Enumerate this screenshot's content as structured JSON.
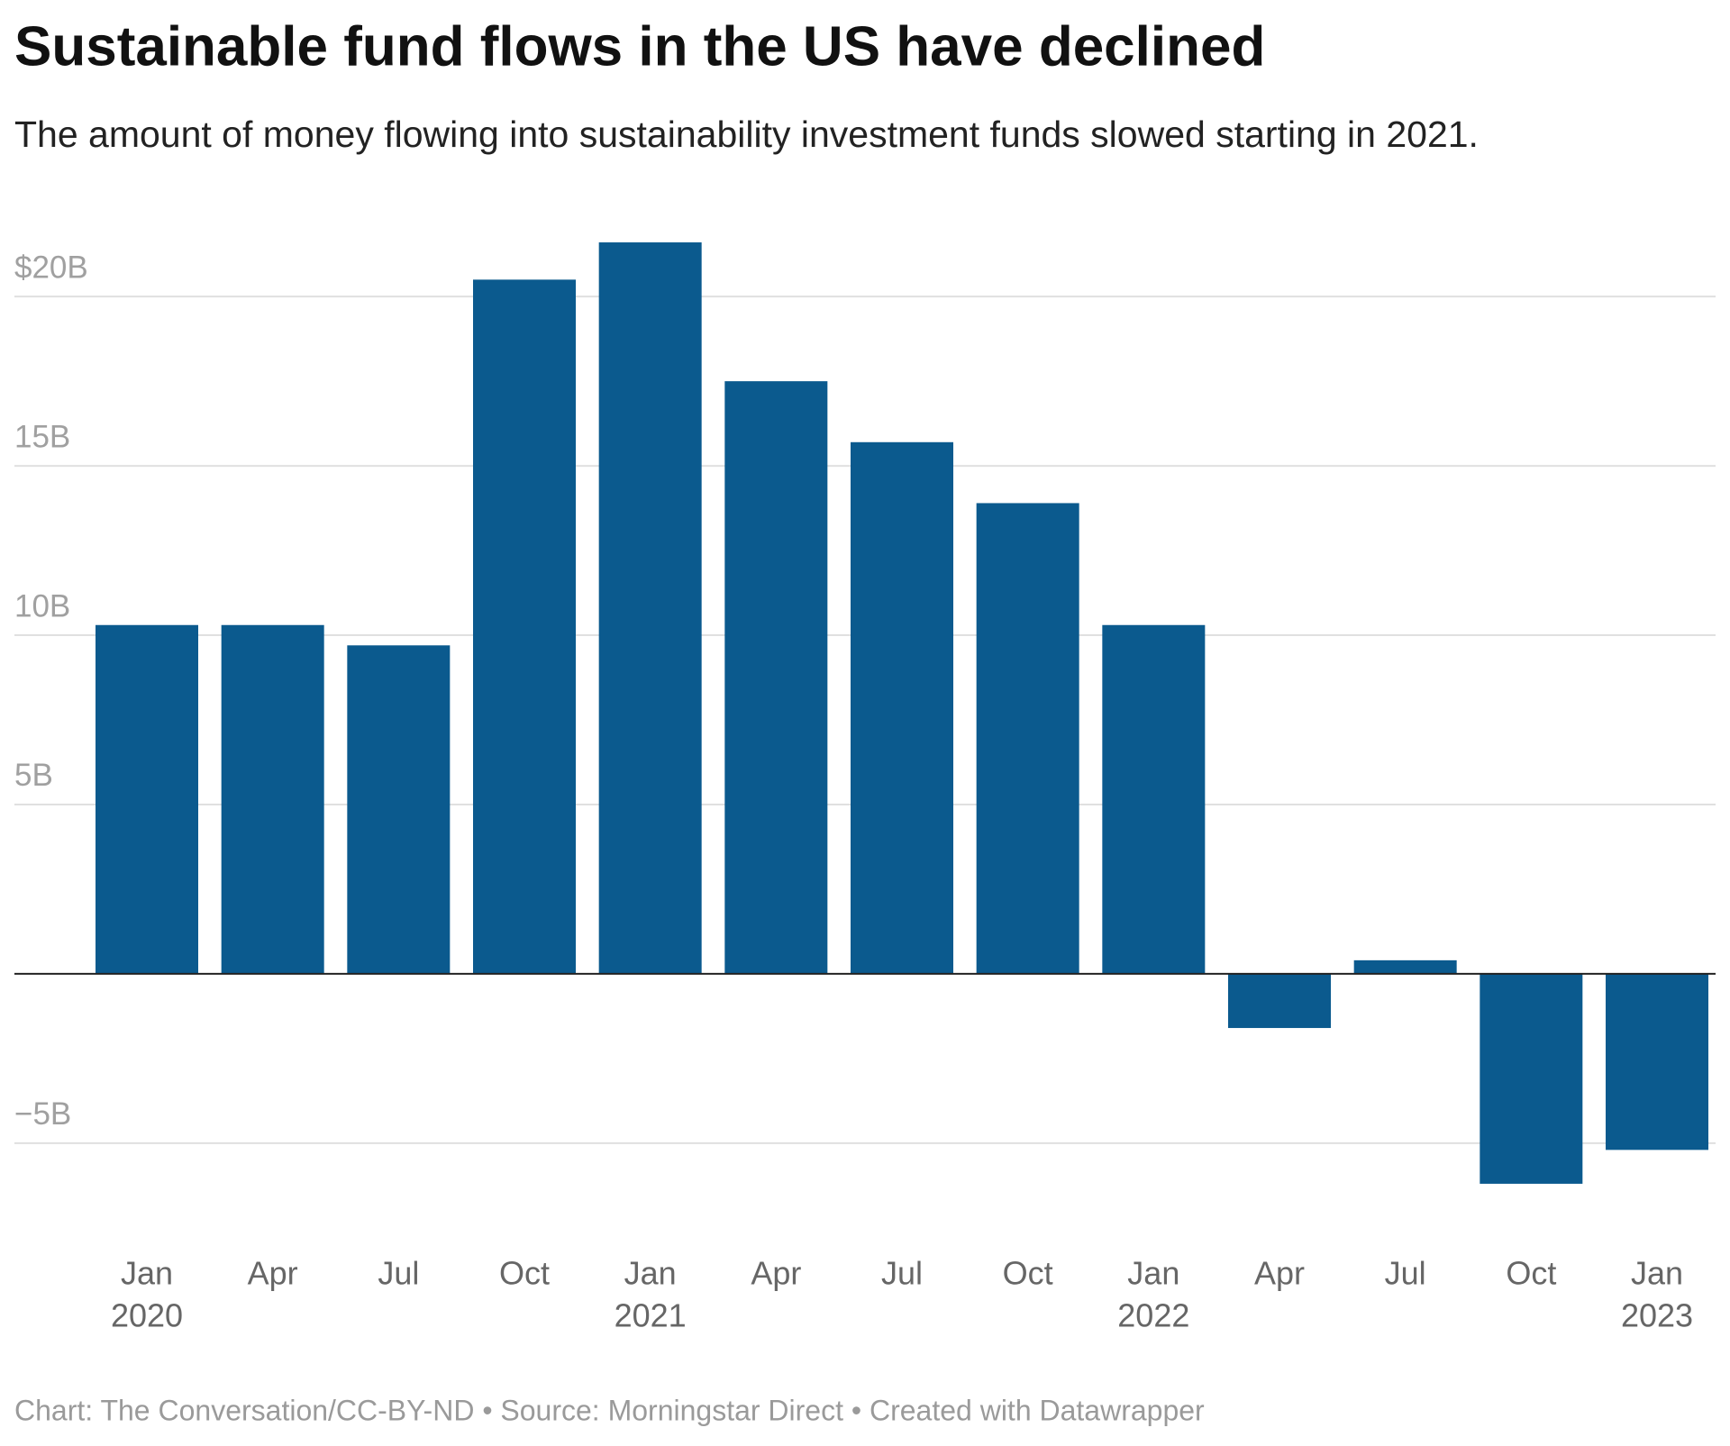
{
  "chart_data": {
    "type": "bar",
    "title": "Sustainable fund flows in the US have declined",
    "subtitle": "The amount of money flowing into sustainability investment funds slowed starting in 2021.",
    "categories": [
      "Jan",
      "Apr",
      "Jul",
      "Oct",
      "Jan",
      "Apr",
      "Jul",
      "Oct",
      "Jan",
      "Apr",
      "Jul",
      "Oct",
      "Jan"
    ],
    "years": [
      "2020",
      null,
      null,
      null,
      "2021",
      null,
      null,
      null,
      "2022",
      null,
      null,
      null,
      "2023"
    ],
    "values": [
      10.3,
      10.3,
      9.7,
      20.5,
      21.6,
      17.5,
      15.7,
      13.9,
      10.3,
      -1.6,
      0.4,
      -6.2,
      -5.2
    ],
    "color": "#0b5a8e",
    "ylim": [
      -7,
      22
    ],
    "yticks": [
      {
        "value": -5,
        "label": "−5B"
      },
      {
        "value": 5,
        "label": "5B"
      },
      {
        "value": 10,
        "label": "10B"
      },
      {
        "value": 15,
        "label": "15B"
      },
      {
        "value": 20,
        "label": "$20B"
      }
    ],
    "grid": true,
    "footer": "Chart: The Conversation/CC-BY-ND • Source: Morningstar Direct • Created with Datawrapper"
  }
}
